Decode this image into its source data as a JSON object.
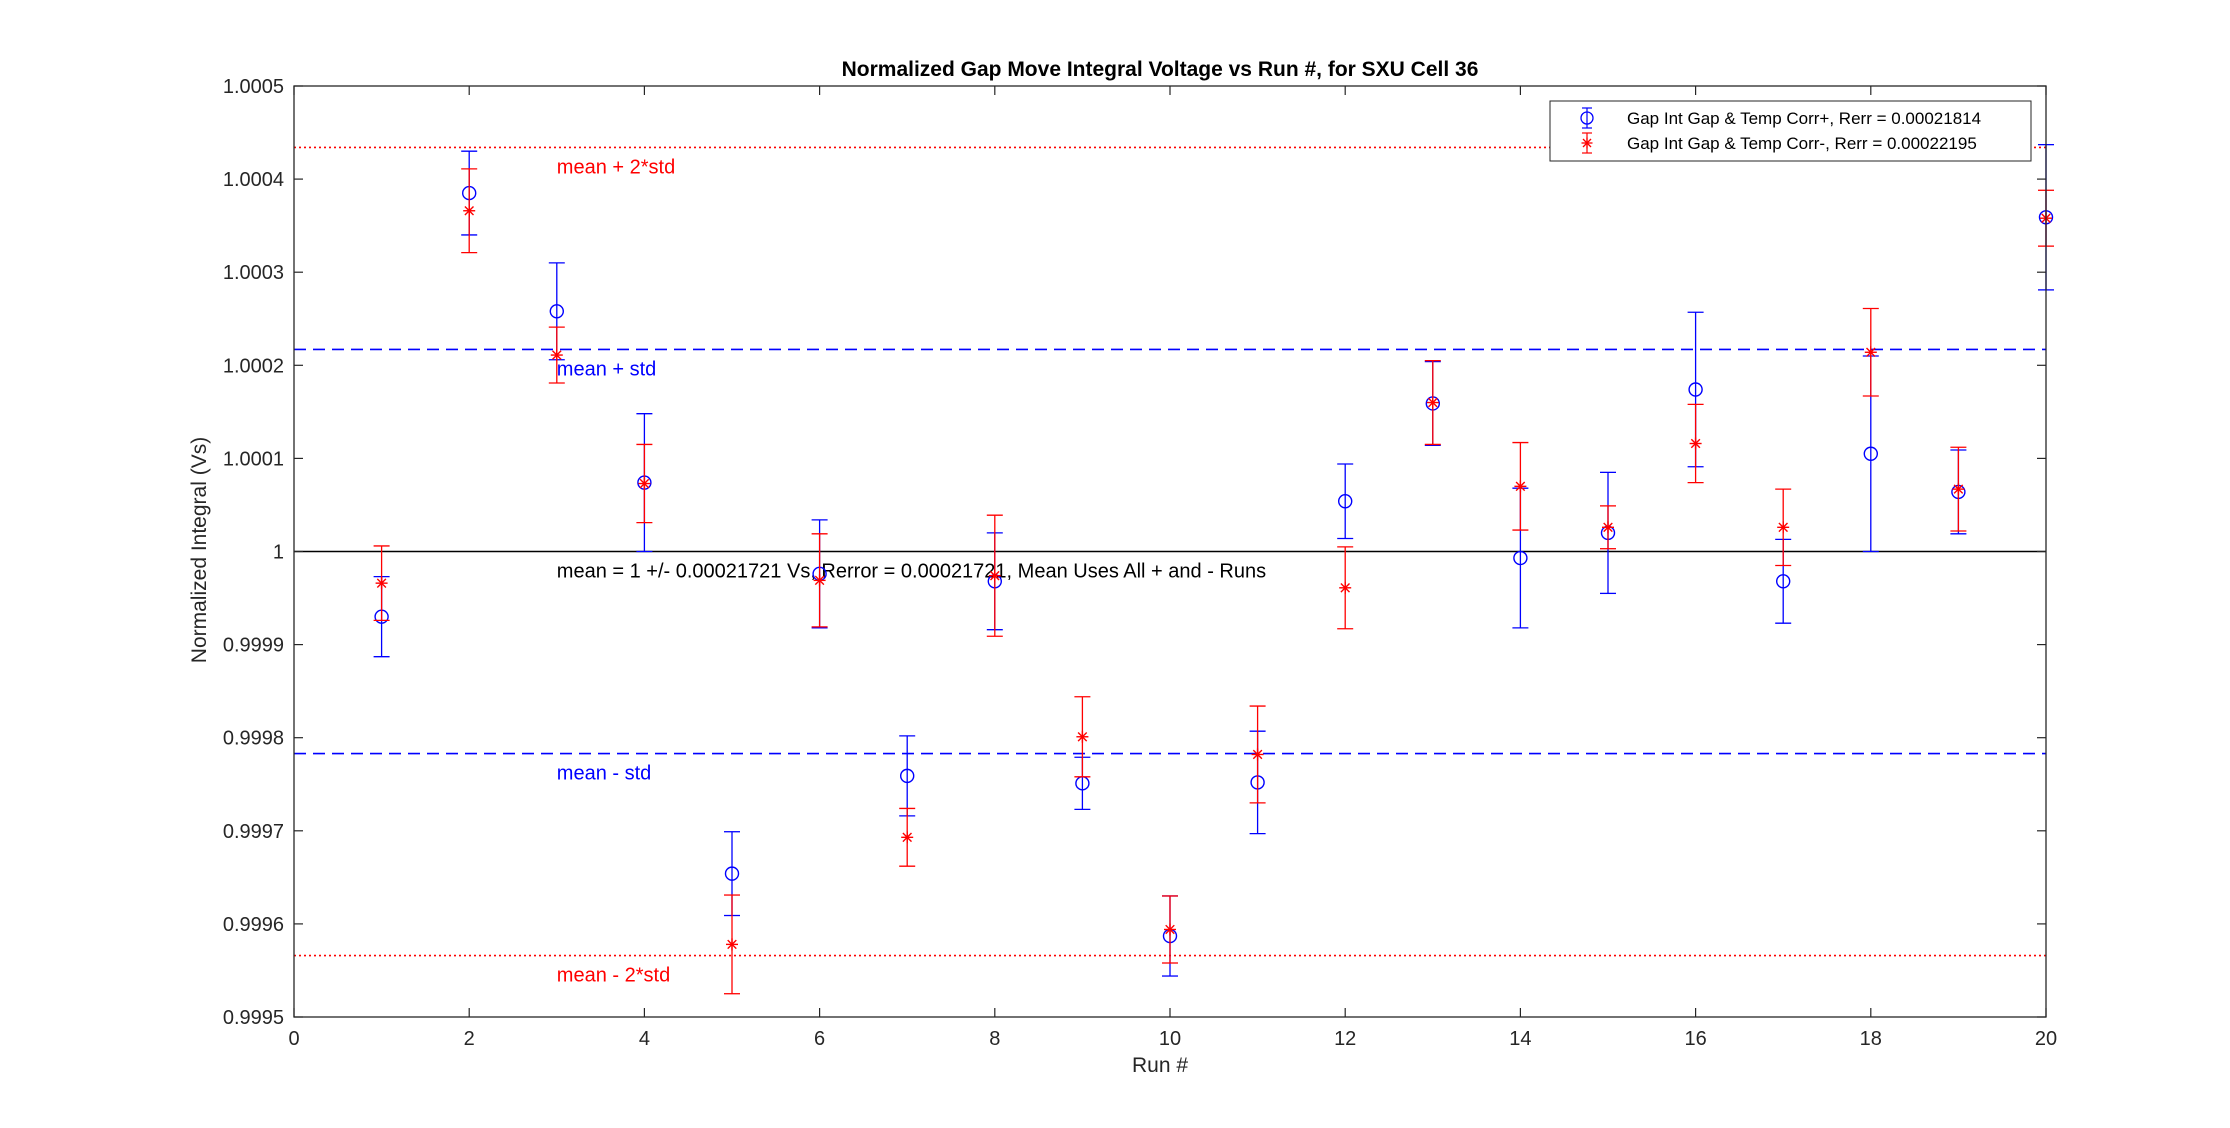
{
  "chart_data": {
    "type": "scatter",
    "title": "Normalized Gap Move Integral Voltage vs Run #, for SXU Cell 36",
    "xlabel": "Run #",
    "ylabel": "Normalized Integral (Vs)",
    "xlim": [
      0,
      20
    ],
    "ylim": [
      0.9995,
      1.0005
    ],
    "xticks": [
      0,
      2,
      4,
      6,
      8,
      10,
      12,
      14,
      16,
      18,
      20
    ],
    "xtick_labels": [
      "0",
      "2",
      "4",
      "6",
      "8",
      "10",
      "12",
      "14",
      "16",
      "18",
      "20"
    ],
    "yticks": [
      0.9995,
      0.9996,
      0.9997,
      0.9998,
      0.9999,
      1.0,
      1.0001,
      1.0002,
      1.0003,
      1.0004,
      1.0005
    ],
    "ytick_labels": [
      "0.9995",
      "0.9996",
      "0.9997",
      "0.9998",
      "0.9999",
      "1",
      "1.0001",
      "1.0002",
      "1.0003",
      "1.0004",
      "1.0005"
    ],
    "grid": false,
    "legend_position": "top-right",
    "series": [
      {
        "name": "Gap Int Gap & Temp Corr+, Rerr = 0.00021814",
        "color": "#0000ff",
        "marker": "circle",
        "x": [
          1,
          2,
          3,
          4,
          5,
          6,
          7,
          8,
          9,
          10,
          11,
          12,
          13,
          14,
          15,
          16,
          17,
          18,
          19,
          20
        ],
        "y": [
          0.99993,
          1.000385,
          1.000258,
          1.000074,
          0.999654,
          0.999976,
          0.999759,
          0.999968,
          0.999751,
          0.999587,
          0.999752,
          1.000054,
          1.000159,
          0.999993,
          1.00002,
          1.000174,
          0.999968,
          1.000105,
          1.000064,
          1.000359
        ],
        "yerr": [
          4.3e-05,
          4.5e-05,
          5.2e-05,
          7.4e-05,
          4.5e-05,
          5.8e-05,
          4.3e-05,
          5.2e-05,
          2.8e-05,
          4.3e-05,
          5.5e-05,
          4e-05,
          4.5e-05,
          7.5e-05,
          6.5e-05,
          8.3e-05,
          4.5e-05,
          0.000105,
          4.5e-05,
          7.8e-05
        ]
      },
      {
        "name": "Gap Int Gap & Temp  Corr-, Rerr = 0.00022195",
        "color": "#ff0000",
        "marker": "star",
        "x": [
          1,
          2,
          3,
          4,
          5,
          6,
          7,
          8,
          9,
          10,
          11,
          12,
          13,
          14,
          15,
          16,
          17,
          18,
          19,
          20
        ],
        "y": [
          0.999966,
          1.000366,
          1.000211,
          1.000073,
          0.999578,
          0.999969,
          0.999693,
          0.999974,
          0.999801,
          0.999594,
          0.999782,
          0.999961,
          1.00016,
          1.00007,
          1.000026,
          1.000116,
          1.000026,
          1.000214,
          1.000067,
          1.000358
        ],
        "yerr": [
          4e-05,
          4.5e-05,
          3e-05,
          4.2e-05,
          5.3e-05,
          5e-05,
          3.1e-05,
          6.5e-05,
          4.3e-05,
          3.6e-05,
          5.2e-05,
          4.4e-05,
          4.5e-05,
          4.7e-05,
          2.3e-05,
          4.2e-05,
          4.1e-05,
          4.7e-05,
          4.5e-05,
          3e-05
        ]
      }
    ],
    "reference_lines": [
      {
        "y": 1.000434,
        "color": "#ff0000",
        "style": "dotted",
        "label": "mean + 2*std",
        "label_x": 3
      },
      {
        "y": 1.000217,
        "color": "#0000ff",
        "style": "dashed",
        "label": "mean + std",
        "label_x": 3
      },
      {
        "y": 1.0,
        "color": "#000000",
        "style": "solid",
        "label": "mean = 1 +/- 0.00021721 Vs, Rerror = 0.00021721, Mean Uses All + and - Runs",
        "label_x": 3
      },
      {
        "y": 0.999783,
        "color": "#0000ff",
        "style": "dashed",
        "label": "mean - std",
        "label_x": 3
      },
      {
        "y": 0.999566,
        "color": "#ff0000",
        "style": "dotted",
        "label": "mean - 2*std",
        "label_x": 3
      }
    ]
  }
}
